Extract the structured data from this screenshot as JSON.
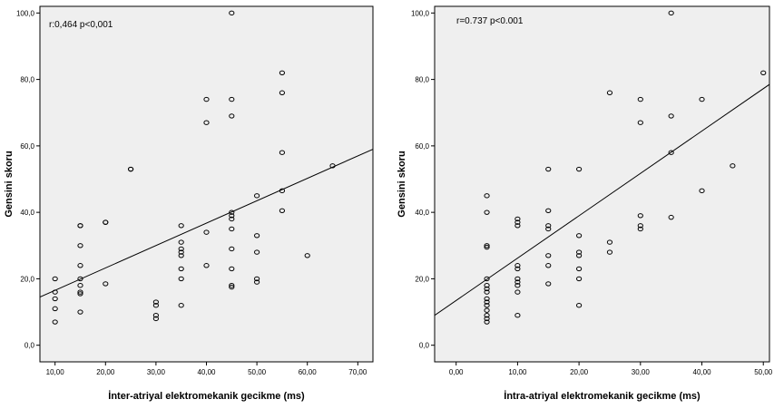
{
  "chart_data": [
    {
      "type": "scatter",
      "xlabel": "İnter-atriyal elektromekanik gecikme (ms)",
      "ylabel": "Gensini skoru",
      "annotation": "r:0,464   p<0,001",
      "xlim": [
        7,
        73
      ],
      "ylim": [
        -5,
        102
      ],
      "xticks": [
        10,
        20,
        30,
        40,
        50,
        60,
        70
      ],
      "xtick_labels": [
        "10,00",
        "20,00",
        "30,00",
        "40,00",
        "50,00",
        "60,00",
        "70,00"
      ],
      "yticks": [
        0,
        20,
        40,
        60,
        80,
        100
      ],
      "ytick_labels": [
        "0,0",
        "20,0",
        "40,0",
        "60,0",
        "80,0",
        "100,0"
      ],
      "fit_line": {
        "x": [
          7,
          73
        ],
        "y": [
          14.5,
          59
        ]
      },
      "points": [
        [
          10,
          20
        ],
        [
          10,
          16
        ],
        [
          10,
          14
        ],
        [
          10,
          11
        ],
        [
          10,
          7
        ],
        [
          15,
          36
        ],
        [
          15,
          36
        ],
        [
          15,
          30
        ],
        [
          15,
          24
        ],
        [
          15,
          20
        ],
        [
          15,
          18
        ],
        [
          15,
          16
        ],
        [
          15,
          15.5
        ],
        [
          15,
          10
        ],
        [
          20,
          37
        ],
        [
          20,
          37
        ],
        [
          20,
          18.5
        ],
        [
          25,
          53
        ],
        [
          25,
          53
        ],
        [
          30,
          13
        ],
        [
          30,
          12
        ],
        [
          30,
          9
        ],
        [
          30,
          8
        ],
        [
          35,
          36
        ],
        [
          35,
          31
        ],
        [
          35,
          29
        ],
        [
          35,
          28
        ],
        [
          35,
          27
        ],
        [
          35,
          23
        ],
        [
          35,
          20
        ],
        [
          35,
          12
        ],
        [
          40,
          74
        ],
        [
          40,
          67
        ],
        [
          40,
          34
        ],
        [
          40,
          24
        ],
        [
          45,
          100
        ],
        [
          45,
          74
        ],
        [
          45,
          69
        ],
        [
          45,
          40
        ],
        [
          45,
          39
        ],
        [
          45,
          38
        ],
        [
          45,
          35
        ],
        [
          45,
          29
        ],
        [
          45,
          23
        ],
        [
          45,
          18
        ],
        [
          45,
          17.5
        ],
        [
          50,
          45
        ],
        [
          50,
          33
        ],
        [
          50,
          28
        ],
        [
          50,
          20
        ],
        [
          50,
          19
        ],
        [
          55,
          82
        ],
        [
          55,
          76
        ],
        [
          55,
          58
        ],
        [
          55,
          46.5
        ],
        [
          55,
          40.5
        ],
        [
          60,
          27
        ],
        [
          65,
          54
        ]
      ]
    },
    {
      "type": "scatter",
      "xlabel": "İntra-atriyal elektromekanik gecikme (ms)",
      "ylabel": "Gensini skoru",
      "annotation": "r=0.737   p<0.001",
      "xlim": [
        -3.5,
        51
      ],
      "ylim": [
        -5,
        102
      ],
      "xticks": [
        0,
        10,
        20,
        30,
        40,
        50
      ],
      "xtick_labels": [
        "0,00",
        "10,00",
        "20,00",
        "30,00",
        "40,00",
        "50,00"
      ],
      "yticks": [
        0,
        20,
        40,
        60,
        80,
        100
      ],
      "ytick_labels": [
        "0,0",
        "20,0",
        "40,0",
        "60,0",
        "80,0",
        "100,0"
      ],
      "fit_line": {
        "x": [
          -3.5,
          51
        ],
        "y": [
          9,
          78.5
        ]
      },
      "points": [
        [
          5,
          45
        ],
        [
          5,
          40
        ],
        [
          5,
          30
        ],
        [
          5,
          29.5
        ],
        [
          5,
          20
        ],
        [
          5,
          18
        ],
        [
          5,
          17
        ],
        [
          5,
          16
        ],
        [
          5,
          14
        ],
        [
          5,
          13
        ],
        [
          5,
          12
        ],
        [
          5,
          10.5
        ],
        [
          5,
          9
        ],
        [
          5,
          8
        ],
        [
          5,
          7
        ],
        [
          10,
          38
        ],
        [
          10,
          37
        ],
        [
          10,
          36
        ],
        [
          10,
          24
        ],
        [
          10,
          23
        ],
        [
          10,
          20
        ],
        [
          10,
          19
        ],
        [
          10,
          18
        ],
        [
          10,
          16
        ],
        [
          10,
          9
        ],
        [
          15,
          53
        ],
        [
          15,
          40.5
        ],
        [
          15,
          36
        ],
        [
          15,
          35
        ],
        [
          15,
          27
        ],
        [
          15,
          24
        ],
        [
          15,
          18.5
        ],
        [
          20,
          53
        ],
        [
          20,
          33
        ],
        [
          20,
          28
        ],
        [
          20,
          27
        ],
        [
          20,
          23
        ],
        [
          20,
          20
        ],
        [
          20,
          12
        ],
        [
          25,
          76
        ],
        [
          25,
          31
        ],
        [
          25,
          28
        ],
        [
          30,
          74
        ],
        [
          30,
          67
        ],
        [
          30,
          39
        ],
        [
          30,
          36
        ],
        [
          30,
          35
        ],
        [
          35,
          100
        ],
        [
          35,
          69
        ],
        [
          35,
          58
        ],
        [
          35,
          38.5
        ],
        [
          40,
          74
        ],
        [
          40,
          46.5
        ],
        [
          45,
          54
        ],
        [
          50,
          82
        ]
      ]
    }
  ]
}
